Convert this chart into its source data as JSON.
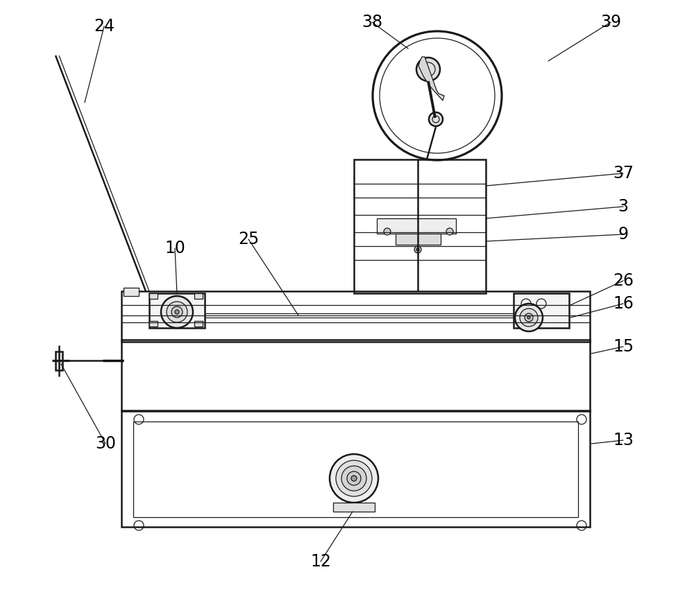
{
  "bg_color": "#ffffff",
  "line_color": "#1a1a1a",
  "lw_main": 1.8,
  "lw_thin": 0.9,
  "lw_thick": 2.5,
  "fig_width": 10.0,
  "fig_height": 8.77,
  "dpi": 100
}
